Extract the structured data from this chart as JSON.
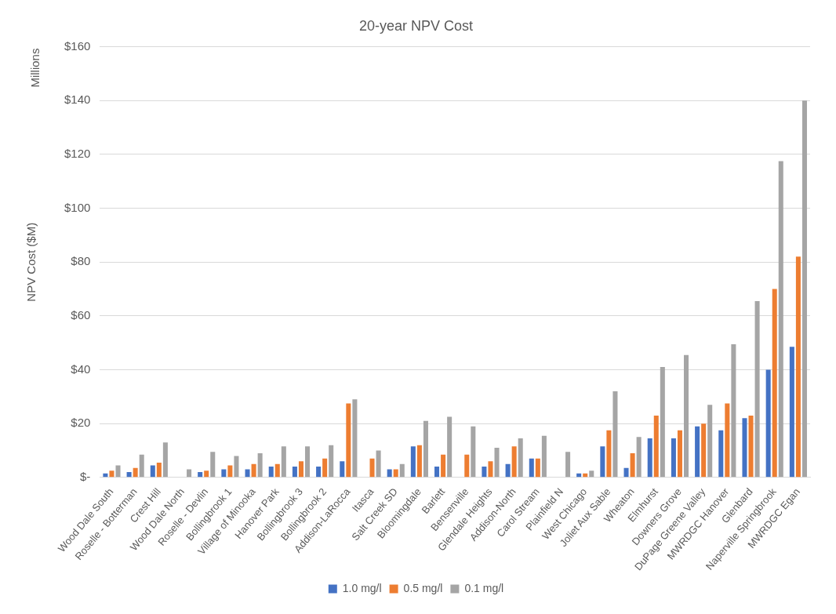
{
  "chart_data": {
    "type": "bar",
    "title": "20-year NPV Cost",
    "ylabel": "NPV Cost ($M)",
    "annotations": [
      "Millions"
    ],
    "categories": [
      "Wood Dale South",
      "Roselle - Botterman",
      "Crest Hill",
      "Wood Dale North",
      "Roselle - Devlin",
      "Bollingbrook 1",
      "Village of Minooka",
      "Hanover Park",
      "Bollingbrook 3",
      "Bollingbrook 2",
      "Addison-LaRocca",
      "Itasca",
      "Salt Creek SD",
      "Bloomingdale",
      "Barlett",
      "Bensenville",
      "Glendale Heights",
      "Addison-North",
      "Carol Stream",
      "Plainfield N",
      "West Chicago",
      "Joliet Aux Sable",
      "Wheaton",
      "Elmhurst",
      "Downers Grove",
      "DuPage Greene Valley",
      "MWRDGC Hanover",
      "Glenbard",
      "Naperville Springbrook",
      "MWRDGC Egan"
    ],
    "series": [
      {
        "name": "1.0 mg/l",
        "color": "#4472c4",
        "values": [
          1.5,
          2,
          4.5,
          null,
          2,
          3,
          3,
          4,
          4,
          4,
          6,
          null,
          3,
          11.5,
          4,
          null,
          4,
          5,
          7,
          null,
          1.5,
          11.5,
          3.5,
          14.5,
          14.5,
          19,
          17.5,
          22,
          40,
          48.5
        ]
      },
      {
        "name": "0.5 mg/l",
        "color": "#ed7d31",
        "values": [
          2.5,
          3.5,
          5.5,
          null,
          2.5,
          4.5,
          5,
          5,
          6,
          7,
          27.5,
          7,
          3,
          12,
          8.5,
          8.5,
          6,
          11.5,
          7,
          null,
          1.5,
          17.5,
          9,
          23,
          17.5,
          20,
          27.5,
          23,
          70,
          82
        ]
      },
      {
        "name": "0.1 mg/l",
        "color": "#a5a5a5",
        "values": [
          4.5,
          8.5,
          13,
          3,
          9.5,
          8,
          9,
          11.5,
          11.5,
          12,
          29,
          10,
          5,
          21,
          22.5,
          19,
          11,
          14.5,
          15.5,
          9.5,
          2.5,
          32,
          15,
          41,
          45.5,
          27,
          49.5,
          65.5,
          117.5,
          140
        ]
      }
    ],
    "ylim": [
      0,
      160
    ],
    "yticks": [
      {
        "value": 0,
        "label": "$-"
      },
      {
        "value": 20,
        "label": "$20"
      },
      {
        "value": 40,
        "label": "$40"
      },
      {
        "value": 60,
        "label": "$60"
      },
      {
        "value": 80,
        "label": "$80"
      },
      {
        "value": 100,
        "label": "$100"
      },
      {
        "value": 120,
        "label": "$120"
      },
      {
        "value": 140,
        "label": "$140"
      },
      {
        "value": 160,
        "label": "$160"
      }
    ],
    "grid": "y",
    "legend": "bottom"
  }
}
